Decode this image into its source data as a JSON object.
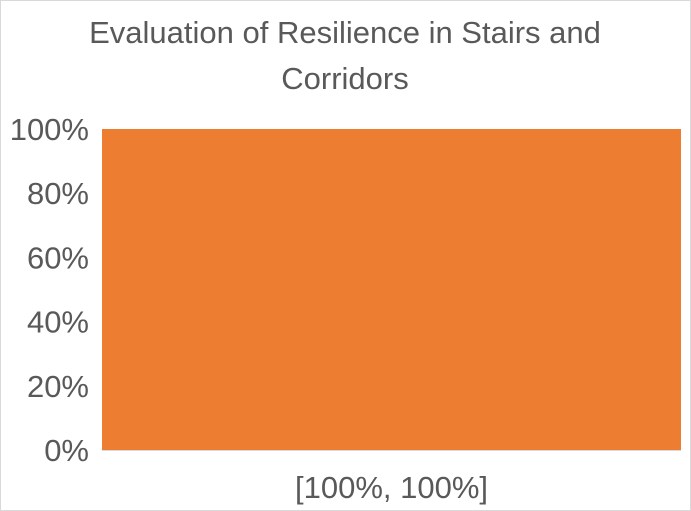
{
  "chart_data": {
    "type": "bar",
    "title": "Evaluation of Resilience in Stairs and Corridors",
    "title_lines": [
      "Evaluation of Resilience in Stairs and",
      "Corridors"
    ],
    "categories": [
      "[100%, 100%]"
    ],
    "values": [
      100
    ],
    "ylim": [
      0,
      100
    ],
    "y_ticks": [
      0,
      20,
      40,
      60,
      80,
      100
    ],
    "y_tick_labels": [
      "0%",
      "20%",
      "40%",
      "60%",
      "80%",
      "100%"
    ],
    "xlabel": "",
    "ylabel": "",
    "grid": false,
    "legend": "none",
    "bar_color": "#ed7d31",
    "text_color": "#595959"
  }
}
